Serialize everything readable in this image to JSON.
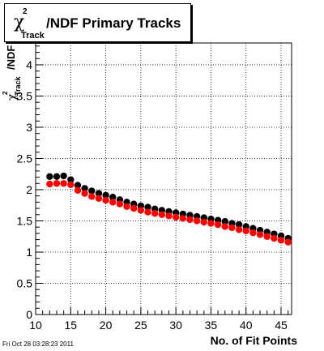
{
  "chart_data": {
    "type": "scatter",
    "title_parts": {
      "symbol": "χ",
      "superscript": "2",
      "subscript": "Track",
      "text": "/NDF Primary Tracks"
    },
    "xlabel": "No. of Fit Points",
    "ylabel_parts": {
      "symbol": "χ",
      "superscript": "2",
      "subscript": "Track",
      "text": "/NDF"
    },
    "xlim": [
      10,
      46.5
    ],
    "ylim": [
      0,
      4.35
    ],
    "xticks": [
      "10",
      "15",
      "20",
      "25",
      "30",
      "35",
      "40",
      "45"
    ],
    "yticks": [
      "0",
      "0.5",
      "1",
      "1.5",
      "2",
      "2.5",
      "3",
      "3.5",
      "4"
    ],
    "grid": true,
    "legend": "none",
    "x": [
      12,
      13,
      14,
      15,
      16,
      17,
      18,
      19,
      20,
      21,
      22,
      23,
      24,
      25,
      26,
      27,
      28,
      29,
      30,
      31,
      32,
      33,
      34,
      35,
      36,
      37,
      38,
      39,
      40,
      41,
      42,
      43,
      44,
      45,
      46
    ],
    "series": [
      {
        "color": "#000000",
        "values": [
          2.21,
          2.21,
          2.22,
          2.16,
          2.07,
          2.02,
          1.98,
          1.94,
          1.91,
          1.88,
          1.84,
          1.8,
          1.77,
          1.74,
          1.72,
          1.69,
          1.67,
          1.65,
          1.63,
          1.61,
          1.59,
          1.57,
          1.55,
          1.53,
          1.51,
          1.49,
          1.46,
          1.44,
          1.41,
          1.38,
          1.35,
          1.32,
          1.29,
          1.26,
          1.22
        ]
      },
      {
        "color": "#ff0000",
        "values": [
          2.09,
          2.1,
          2.1,
          2.08,
          1.99,
          1.94,
          1.89,
          1.86,
          1.83,
          1.8,
          1.77,
          1.73,
          1.7,
          1.67,
          1.64,
          1.62,
          1.6,
          1.58,
          1.56,
          1.54,
          1.52,
          1.5,
          1.48,
          1.46,
          1.44,
          1.41,
          1.39,
          1.36,
          1.34,
          1.31,
          1.28,
          1.25,
          1.22,
          1.19,
          1.16
        ]
      }
    ]
  },
  "timestamp": "Fri Oct 28 03:28:23 2011"
}
